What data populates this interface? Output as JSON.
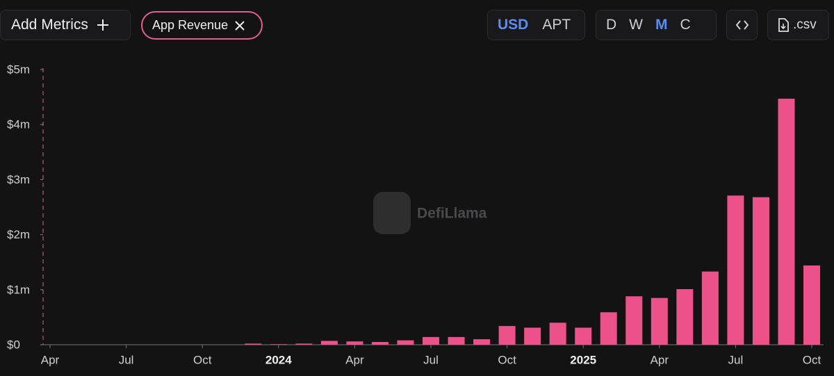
{
  "toolbar": {
    "add_metrics": "Add Metrics",
    "chip": "App Revenue",
    "currency": [
      "USD",
      "APT"
    ],
    "currency_active": 0,
    "periods": [
      "D",
      "W",
      "M",
      "C"
    ],
    "period_active": 2,
    "csv": ".csv"
  },
  "chart_data": {
    "type": "bar",
    "watermark": "DefiLlama",
    "color": "#ec5289",
    "categories": [
      "Apr",
      null,
      null,
      "Jul",
      null,
      null,
      "Oct",
      null,
      null,
      "2024",
      null,
      null,
      "Apr",
      null,
      null,
      "Jul",
      null,
      null,
      "Oct",
      null,
      null,
      "2025",
      null,
      null,
      "Apr",
      null,
      null,
      "Jul",
      null,
      null,
      "Oct"
    ],
    "values": [
      0,
      0,
      0,
      0,
      0,
      0,
      0,
      0,
      0.02,
      0.01,
      0.02,
      0.07,
      0.06,
      0.05,
      0.08,
      0.14,
      0.14,
      0.1,
      0.34,
      0.31,
      0.4,
      0.31,
      0.59,
      0.88,
      0.85,
      1.01,
      1.33,
      2.71,
      2.68,
      4.47,
      1.44
    ],
    "ylim": [
      0,
      5
    ],
    "yticks": [
      {
        "value": 0,
        "label": "$0"
      },
      {
        "value": 1,
        "label": "$1m"
      },
      {
        "value": 2,
        "label": "$2m"
      },
      {
        "value": 3,
        "label": "$3m"
      },
      {
        "value": 4,
        "label": "$4m"
      },
      {
        "value": 5,
        "label": "$5m"
      }
    ]
  }
}
